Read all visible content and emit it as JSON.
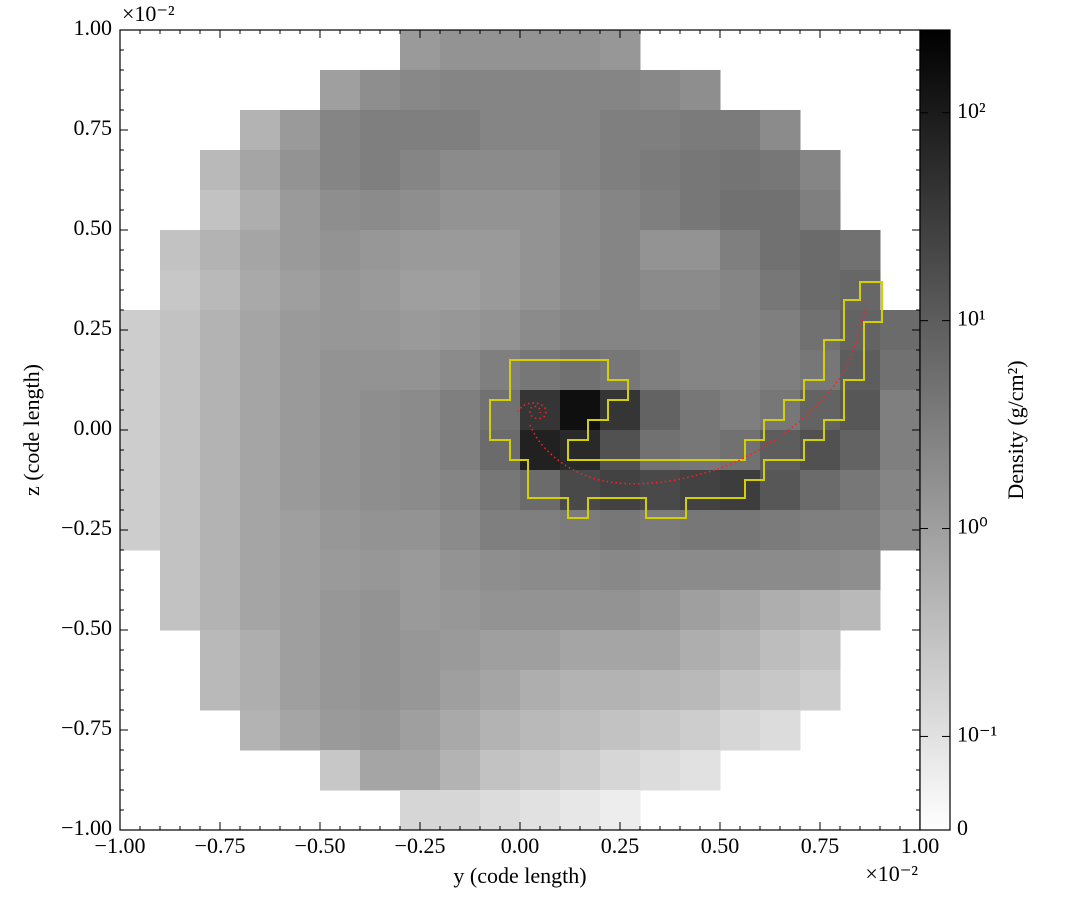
{
  "chart_data": {
    "type": "heatmap",
    "xlabel": "y  (code length)",
    "ylabel": "z  (code length)",
    "x_offset_label": "×10⁻²",
    "y_offset_label": "×10⁻²",
    "xlim": [
      -1,
      1
    ],
    "ylim": [
      -1,
      1
    ],
    "xticks": [
      {
        "value": -1,
        "label": "−1.00"
      },
      {
        "value": -0.75,
        "label": "−0.75"
      },
      {
        "value": -0.5,
        "label": "−0.50"
      },
      {
        "value": -0.25,
        "label": "−0.25"
      },
      {
        "value": 0,
        "label": "0.00"
      },
      {
        "value": 0.25,
        "label": "0.25"
      },
      {
        "value": 0.5,
        "label": "0.50"
      },
      {
        "value": 0.75,
        "label": "0.75"
      },
      {
        "value": 1,
        "label": "1.00"
      }
    ],
    "yticks": [
      {
        "value": -1,
        "label": "−1.00"
      },
      {
        "value": -0.75,
        "label": "−0.75"
      },
      {
        "value": -0.5,
        "label": "−0.50"
      },
      {
        "value": -0.25,
        "label": "−0.25"
      },
      {
        "value": 0,
        "label": "0.00"
      },
      {
        "value": 0.25,
        "label": "0.25"
      },
      {
        "value": 0.5,
        "label": "0.50"
      },
      {
        "value": 0.75,
        "label": "0.75"
      },
      {
        "value": 1,
        "label": "1.00"
      }
    ],
    "z": [
      [
        null,
        null,
        null,
        null,
        null,
        null,
        null,
        1.2,
        1.5,
        1.5,
        1.5,
        1.5,
        1.3,
        null,
        null,
        null,
        null,
        null,
        null,
        null
      ],
      [
        null,
        null,
        null,
        null,
        null,
        1.0,
        1.8,
        2.2,
        2.5,
        2.5,
        2.5,
        2.5,
        2.5,
        2.2,
        1.8,
        null,
        null,
        null,
        null,
        null
      ],
      [
        null,
        null,
        null,
        0.5,
        1.2,
        2.5,
        3,
        3,
        3,
        2.5,
        2.5,
        2.5,
        3,
        3,
        3.5,
        3.5,
        2,
        null,
        null,
        null
      ],
      [
        null,
        null,
        0.4,
        0.8,
        1.5,
        2.5,
        3,
        2.5,
        2,
        2,
        2,
        2.5,
        3,
        3.5,
        4,
        4.5,
        4,
        2.5,
        null,
        null
      ],
      [
        null,
        null,
        0.3,
        0.6,
        1.2,
        1.8,
        2,
        1.8,
        1.5,
        1.5,
        1.5,
        2,
        2.5,
        3,
        4,
        5,
        5,
        3,
        null,
        null
      ],
      [
        null,
        0.3,
        0.5,
        0.8,
        1.2,
        1.5,
        1.3,
        1.2,
        1.2,
        1.2,
        1.5,
        2,
        2.5,
        1.5,
        1.5,
        3,
        5,
        6,
        5,
        null
      ],
      [
        null,
        0.25,
        0.4,
        0.7,
        1,
        1.3,
        1.2,
        1,
        1,
        1.2,
        1.5,
        2,
        2.5,
        2,
        2,
        2.5,
        4,
        6,
        7,
        null
      ],
      [
        0.2,
        0.3,
        0.5,
        0.8,
        1.2,
        1.3,
        1.3,
        1.2,
        1.3,
        1.5,
        2,
        2.5,
        2.5,
        2.5,
        2.5,
        2.5,
        3,
        5,
        8,
        6
      ],
      [
        0.2,
        0.3,
        0.5,
        0.8,
        1.2,
        1.5,
        1.5,
        1.5,
        2,
        3,
        4,
        5,
        4,
        3,
        2.5,
        2.5,
        3,
        4,
        10,
        5
      ],
      [
        0.2,
        0.3,
        0.5,
        0.8,
        1.2,
        1.5,
        1.8,
        2,
        3,
        5,
        40,
        150,
        40,
        8,
        4,
        3,
        4,
        8,
        12,
        3
      ],
      [
        0.2,
        0.3,
        0.5,
        0.8,
        1.2,
        1.5,
        1.8,
        2,
        3,
        6,
        80,
        60,
        15,
        5,
        4,
        5,
        10,
        15,
        8,
        3
      ],
      [
        0.2,
        0.3,
        0.5,
        0.8,
        1.2,
        1.5,
        1.8,
        2,
        2.5,
        4,
        6,
        20,
        25,
        20,
        25,
        30,
        12,
        6,
        4,
        2.5
      ],
      [
        0.2,
        0.3,
        0.5,
        0.8,
        1,
        1.3,
        1.5,
        1.5,
        2,
        3,
        3,
        3.5,
        4,
        3.5,
        4,
        4,
        3.5,
        3,
        3,
        2
      ],
      [
        null,
        0.3,
        0.5,
        0.8,
        1,
        1.2,
        1.3,
        1.2,
        1.5,
        1.8,
        2,
        2,
        2.2,
        2,
        2,
        2,
        2,
        2,
        1.8,
        null
      ],
      [
        null,
        0.3,
        0.5,
        0.8,
        1,
        1.3,
        1.5,
        1.2,
        1.3,
        1.5,
        1.5,
        1.5,
        1.5,
        1.3,
        1,
        0.8,
        0.6,
        0.5,
        0.4,
        null
      ],
      [
        null,
        null,
        0.4,
        0.6,
        1,
        1.3,
        1.5,
        1.3,
        1.2,
        1,
        1,
        0.8,
        0.8,
        0.8,
        0.6,
        0.5,
        0.35,
        0.3,
        null,
        null
      ],
      [
        null,
        null,
        0.4,
        0.6,
        1,
        1.3,
        1.5,
        1.3,
        1,
        0.8,
        0.6,
        0.5,
        0.5,
        0.45,
        0.4,
        0.3,
        0.25,
        0.2,
        null,
        null
      ],
      [
        null,
        null,
        null,
        0.5,
        0.8,
        1.2,
        1.3,
        1,
        0.7,
        0.5,
        0.4,
        0.35,
        0.3,
        0.25,
        0.2,
        0.15,
        0.12,
        null,
        null,
        null
      ],
      [
        null,
        null,
        null,
        null,
        null,
        0.25,
        0.8,
        0.8,
        0.5,
        0.3,
        0.25,
        0.2,
        0.15,
        0.12,
        0.1,
        null,
        null,
        null,
        null,
        null
      ],
      [
        null,
        null,
        null,
        null,
        null,
        null,
        null,
        0.15,
        0.15,
        0.12,
        0.1,
        0.08,
        0.06,
        null,
        null,
        null,
        null,
        null,
        null,
        null
      ]
    ],
    "colorbar": {
      "label": "Density  (g/cm²)",
      "clim": [
        0,
        250
      ],
      "scale": "symlog",
      "linthresh": 0.1,
      "linscale": 0.45,
      "ticks": [
        {
          "value": 0,
          "label": "0"
        },
        {
          "value": 0.1,
          "label": "10⁻¹"
        },
        {
          "value": 1,
          "label": "10⁰"
        },
        {
          "value": 10,
          "label": "10¹"
        },
        {
          "value": 100,
          "label": "10²"
        }
      ]
    }
  }
}
